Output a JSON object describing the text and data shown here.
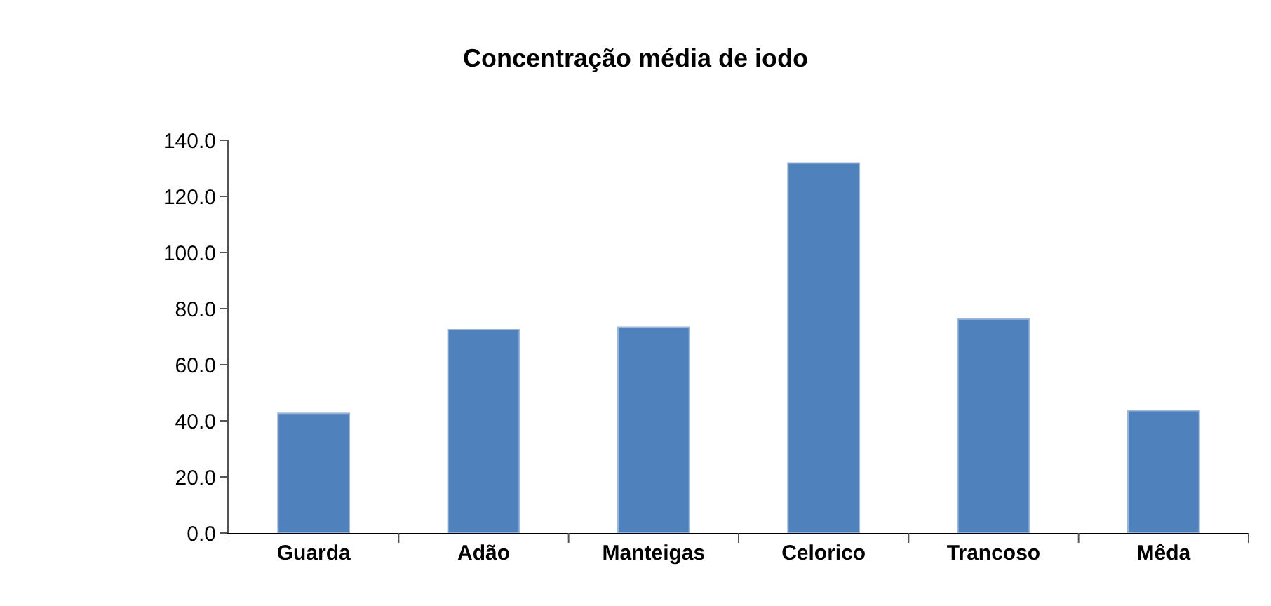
{
  "chart_data": {
    "type": "bar",
    "title": "Concentração média de iodo",
    "categories": [
      "Guarda",
      "Adão",
      "Manteigas",
      "Celorico",
      "Trancoso",
      "Mêda"
    ],
    "values": [
      42.7,
      72.5,
      73.4,
      131.9,
      76.3,
      43.6
    ],
    "color": "#4f81bd",
    "ylim": [
      0,
      140
    ],
    "yticks": [
      {
        "value": 0,
        "label": "0.0"
      },
      {
        "value": 20,
        "label": "20.0"
      },
      {
        "value": 40,
        "label": "40.0"
      },
      {
        "value": 60,
        "label": "60.0"
      },
      {
        "value": 80,
        "label": "80.0"
      },
      {
        "value": 100,
        "label": "100.0"
      },
      {
        "value": 120,
        "label": "120.0"
      },
      {
        "value": 140,
        "label": "140.0"
      }
    ],
    "grid": false,
    "legend": false
  }
}
